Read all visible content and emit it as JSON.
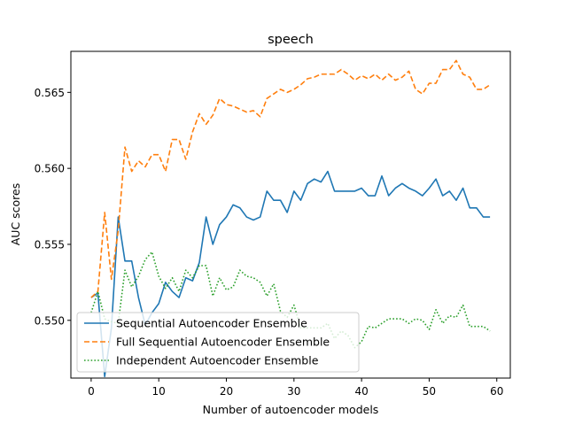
{
  "chart_data": {
    "type": "line",
    "title": "speech",
    "xlabel": "Number of autoencoder models",
    "ylabel": "AUC scores",
    "xlim": [
      -3,
      62
    ],
    "ylim": [
      0.5462,
      0.5677
    ],
    "xticks": [
      0,
      10,
      20,
      30,
      40,
      50,
      60
    ],
    "xtick_labels": [
      "0",
      "10",
      "20",
      "30",
      "40",
      "50",
      "60"
    ],
    "yticks": [
      0.55,
      0.555,
      0.56,
      0.565
    ],
    "ytick_labels": [
      "0.550",
      "0.555",
      "0.560",
      "0.565"
    ],
    "grid": false,
    "legend_position": "lower left",
    "x": [
      0,
      1,
      2,
      3,
      4,
      5,
      6,
      7,
      8,
      9,
      10,
      11,
      12,
      13,
      14,
      15,
      16,
      17,
      18,
      19,
      20,
      21,
      22,
      23,
      24,
      25,
      26,
      27,
      28,
      29,
      30,
      31,
      32,
      33,
      34,
      35,
      36,
      37,
      38,
      39,
      40,
      41,
      42,
      43,
      44,
      45,
      46,
      47,
      48,
      49,
      50,
      51,
      52,
      53,
      54,
      55,
      56,
      57,
      58,
      59
    ],
    "series": [
      {
        "name": "Sequential Autoencoder Ensemble",
        "color": "#1f77b4",
        "style": "solid",
        "values": [
          0.5515,
          0.5518,
          0.5463,
          0.5495,
          0.5568,
          0.5539,
          0.5539,
          0.5515,
          0.5497,
          0.5505,
          0.5511,
          0.5525,
          0.5519,
          0.5515,
          0.5528,
          0.5526,
          0.5538,
          0.5568,
          0.555,
          0.5563,
          0.5568,
          0.5576,
          0.5574,
          0.5568,
          0.5566,
          0.5568,
          0.5585,
          0.5579,
          0.5579,
          0.5571,
          0.5585,
          0.5579,
          0.559,
          0.5593,
          0.5591,
          0.5598,
          0.5585,
          0.5585,
          0.5585,
          0.5585,
          0.5587,
          0.5582,
          0.5582,
          0.5595,
          0.5582,
          0.5587,
          0.559,
          0.5587,
          0.5585,
          0.5582,
          0.5587,
          0.5593,
          0.5582,
          0.5585,
          0.5579,
          0.5587,
          0.5574,
          0.5574,
          0.5568,
          0.5568
        ]
      },
      {
        "name": "Full Sequential Autoencoder Ensemble",
        "color": "#ff7f0e",
        "style": "dashed",
        "values": [
          0.5515,
          0.5519,
          0.5571,
          0.5527,
          0.5559,
          0.5614,
          0.5598,
          0.5605,
          0.5601,
          0.5609,
          0.5609,
          0.5598,
          0.5619,
          0.5619,
          0.5606,
          0.5624,
          0.5636,
          0.5629,
          0.5635,
          0.5646,
          0.5642,
          0.5641,
          0.5639,
          0.5637,
          0.5638,
          0.5634,
          0.5646,
          0.5649,
          0.5652,
          0.565,
          0.5652,
          0.5655,
          0.5659,
          0.566,
          0.5662,
          0.5662,
          0.5662,
          0.5665,
          0.5662,
          0.5658,
          0.5661,
          0.5659,
          0.5662,
          0.5658,
          0.5662,
          0.5658,
          0.566,
          0.5664,
          0.5652,
          0.5649,
          0.5656,
          0.5656,
          0.5665,
          0.5665,
          0.5671,
          0.5662,
          0.566,
          0.5652,
          0.5652,
          0.5655
        ]
      },
      {
        "name": "Independent Autoencoder Ensemble",
        "color": "#2ca02c",
        "style": "dotted",
        "values": [
          0.5505,
          0.5519,
          0.5501,
          0.5499,
          0.5498,
          0.5533,
          0.5522,
          0.5529,
          0.554,
          0.5545,
          0.5529,
          0.5521,
          0.5528,
          0.5519,
          0.5533,
          0.5528,
          0.5536,
          0.5536,
          0.5516,
          0.5528,
          0.552,
          0.5522,
          0.5533,
          0.5529,
          0.5528,
          0.5525,
          0.5516,
          0.5524,
          0.5506,
          0.5502,
          0.551,
          0.5495,
          0.5495,
          0.5495,
          0.5495,
          0.5498,
          0.5488,
          0.5493,
          0.549,
          0.5482,
          0.5486,
          0.5496,
          0.5495,
          0.5498,
          0.5501,
          0.5501,
          0.5501,
          0.5498,
          0.5501,
          0.55,
          0.5494,
          0.5507,
          0.5498,
          0.5503,
          0.5502,
          0.551,
          0.5496,
          0.5496,
          0.5496,
          0.5493
        ]
      }
    ]
  }
}
